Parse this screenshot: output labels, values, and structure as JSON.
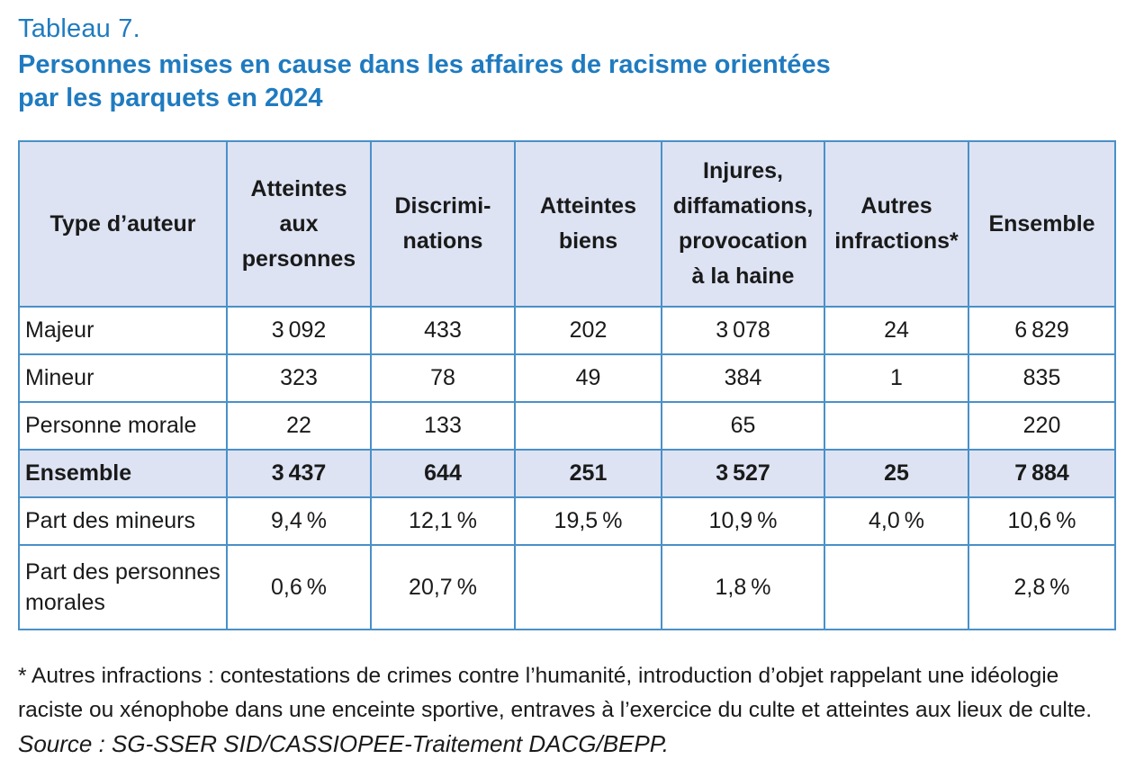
{
  "table_label": "Tableau 7.",
  "title_lines": [
    "Personnes mises en cause dans les affaires de racisme orientées",
    "par les parquets en 2024"
  ],
  "headers": [
    [
      "Type d’auteur"
    ],
    [
      "Atteintes",
      "aux",
      "personnes"
    ],
    [
      "Discrimi-",
      "nations"
    ],
    [
      "Atteintes",
      "biens"
    ],
    [
      "Injures,",
      "diffamations,",
      "provocation",
      "à la haine"
    ],
    [
      "Autres",
      "infractions*"
    ],
    [
      "Ensemble"
    ]
  ],
  "rows": [
    {
      "label": [
        "Majeur"
      ],
      "values": [
        "3 092",
        "433",
        "202",
        "3 078",
        "24",
        "6 829"
      ]
    },
    {
      "label": [
        "Mineur"
      ],
      "values": [
        "323",
        "78",
        "49",
        "384",
        "1",
        "835"
      ]
    },
    {
      "label": [
        "Personne morale"
      ],
      "values": [
        "22",
        "133",
        "",
        "65",
        "",
        "220"
      ]
    },
    {
      "label": [
        "Ensemble"
      ],
      "values": [
        "3 437",
        "644",
        "251",
        "3 527",
        "25",
        "7 884"
      ]
    },
    {
      "label": [
        "Part des mineurs"
      ],
      "values": [
        "9,4 %",
        "12,1 %",
        "19,5 %",
        "10,9 %",
        "4,0 %",
        "10,6 %"
      ]
    },
    {
      "label": [
        "Part des personnes",
        "morales"
      ],
      "values": [
        "0,6 %",
        "20,7 %",
        "",
        "1,8 %",
        "",
        "2,8 %"
      ]
    }
  ],
  "footnote_lines": [
    "* Autres infractions : contestations de crimes contre l’humanité, introduction d’objet rappelant une idéologie",
    "raciste ou xénophobe dans une enceinte sportive, entraves à l’exercice du culte et atteintes aux lieux de culte."
  ],
  "source": "Source : SG-SSER SID/CASSIOPEE-Traitement DACG/BEPP.",
  "colors": {
    "accent": "#1f7bc0",
    "header_bg": "#dde3f3",
    "border": "#4a90c8"
  }
}
